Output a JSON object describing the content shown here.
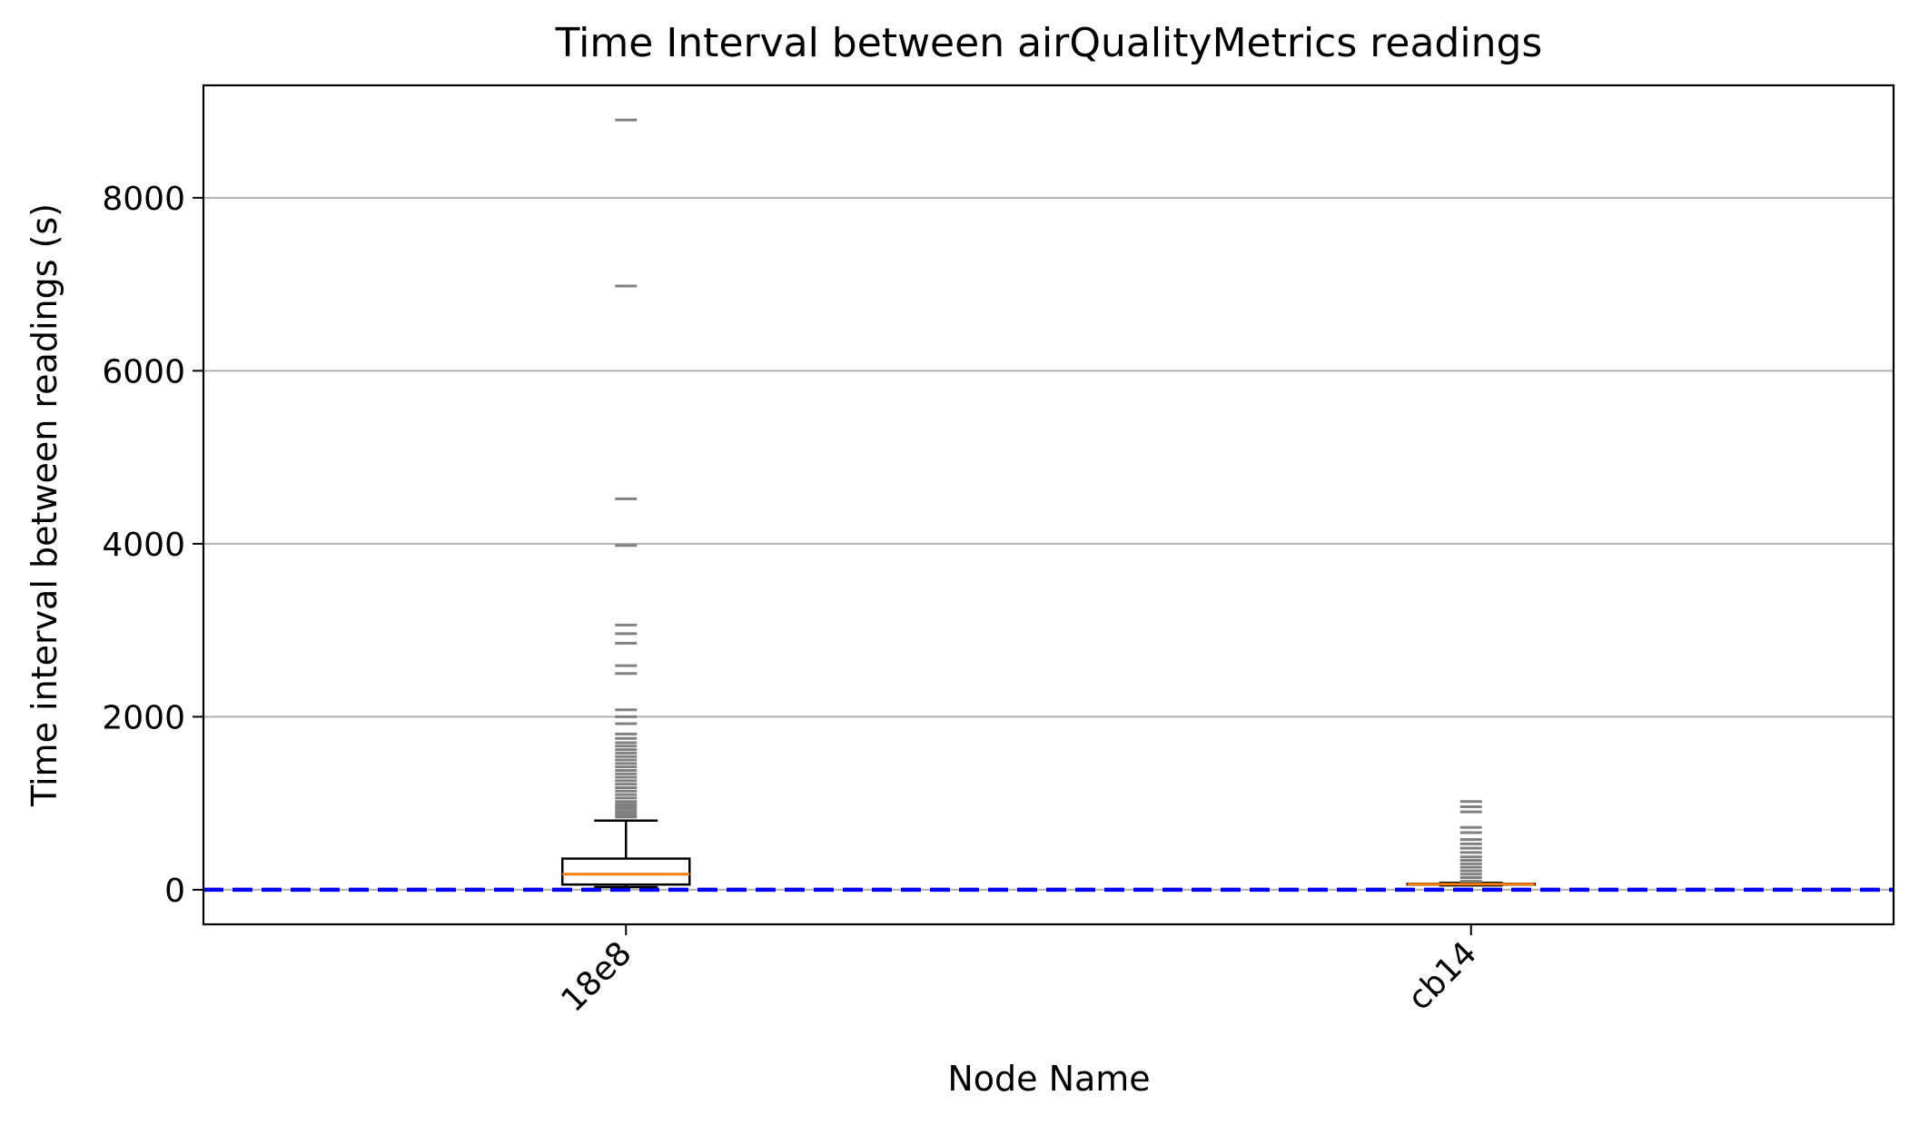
{
  "chart_data": {
    "type": "box",
    "title": "Time Interval between airQualityMetrics readings",
    "xlabel": "Node Name",
    "ylabel": "Time interval between readings (s)",
    "ylim": [
      -400,
      9300
    ],
    "yticks": [
      0,
      2000,
      4000,
      6000,
      8000
    ],
    "ytick_labels": [
      "0",
      "2000",
      "4000",
      "6000",
      "8000"
    ],
    "categories": [
      "18e8",
      "cb14"
    ],
    "grid": "horizontal",
    "reference_line": {
      "y": 0,
      "style": "dashed",
      "color": "#0000ff"
    },
    "colors": {
      "median": "#ff7f0e",
      "box": "#000000",
      "outlier": "#808080",
      "grid": "#b0b0b0"
    },
    "boxes": [
      {
        "name": "18e8",
        "whisker_low": 30,
        "q1": 60,
        "median": 180,
        "q3": 360,
        "whisker_high": 800,
        "outliers": [
          840,
          870,
          900,
          930,
          960,
          990,
          1020,
          1060,
          1100,
          1140,
          1180,
          1220,
          1260,
          1300,
          1340,
          1380,
          1420,
          1460,
          1500,
          1540,
          1580,
          1620,
          1660,
          1700,
          1750,
          1800,
          1920,
          2000,
          2080,
          2500,
          2590,
          2850,
          2960,
          3060,
          3980,
          4520,
          6980,
          8900
        ]
      },
      {
        "name": "cb14",
        "whisker_low": 50,
        "q1": 60,
        "median": 65,
        "q3": 70,
        "whisker_high": 80,
        "outliers": [
          100,
          140,
          180,
          220,
          260,
          300,
          340,
          380,
          430,
          480,
          530,
          580,
          660,
          720,
          900,
          960,
          1020
        ]
      }
    ]
  }
}
